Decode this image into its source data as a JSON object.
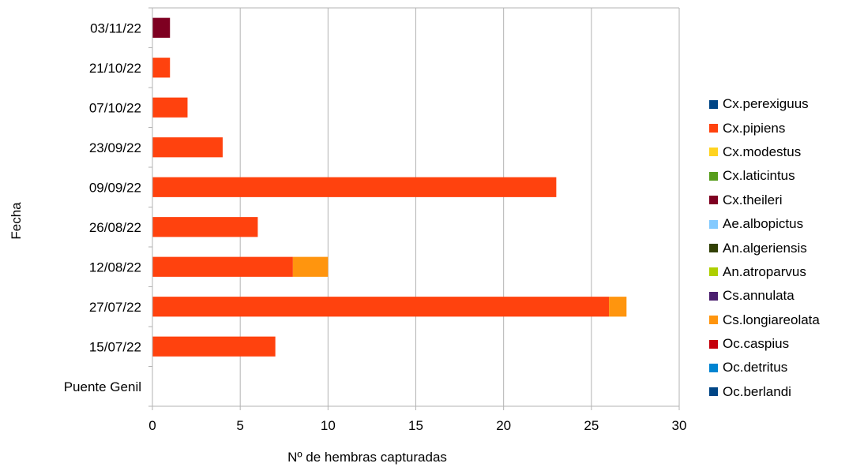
{
  "chart_data": {
    "type": "bar",
    "orientation": "horizontal",
    "stacked": true,
    "xlabel": "Nº de hembras capturadas",
    "ylabel": "Fecha",
    "xlim": [
      0,
      30
    ],
    "xticks": [
      "0",
      "5",
      "10",
      "15",
      "20",
      "25",
      "30"
    ],
    "categories": [
      "Puente Genil",
      "15/07/22",
      "27/07/22",
      "12/08/22",
      "26/08/22",
      "09/09/22",
      "23/09/22",
      "07/10/22",
      "21/10/22",
      "03/11/22"
    ],
    "series": [
      {
        "name": "Cx.perexiguus",
        "color": "#004586",
        "values": [
          0,
          0,
          0,
          0,
          0,
          0,
          0,
          0,
          0,
          0
        ]
      },
      {
        "name": "Cx.pipiens",
        "color": "#ff420e",
        "values": [
          0,
          7,
          26,
          8,
          6,
          23,
          4,
          2,
          1,
          0
        ]
      },
      {
        "name": "Cx.modestus",
        "color": "#ffd320",
        "values": [
          0,
          0,
          0,
          0,
          0,
          0,
          0,
          0,
          0,
          0
        ]
      },
      {
        "name": "Cx.laticintus",
        "color": "#579d1c",
        "values": [
          0,
          0,
          0,
          0,
          0,
          0,
          0,
          0,
          0,
          0
        ]
      },
      {
        "name": "Cx.theileri",
        "color": "#7e0021",
        "values": [
          0,
          0,
          0,
          0,
          0,
          0,
          0,
          0,
          0,
          1
        ]
      },
      {
        "name": "Ae.albopictus",
        "color": "#83caff",
        "values": [
          0,
          0,
          0,
          0,
          0,
          0,
          0,
          0,
          0,
          0
        ]
      },
      {
        "name": "An.algeriensis",
        "color": "#314004",
        "values": [
          0,
          0,
          0,
          0,
          0,
          0,
          0,
          0,
          0,
          0
        ]
      },
      {
        "name": "An.atroparvus",
        "color": "#aecf00",
        "values": [
          0,
          0,
          0,
          0,
          0,
          0,
          0,
          0,
          0,
          0
        ]
      },
      {
        "name": "Cs.annulata",
        "color": "#4b1f6f",
        "values": [
          0,
          0,
          0,
          0,
          0,
          0,
          0,
          0,
          0,
          0
        ]
      },
      {
        "name": "Cs.longiareolata",
        "color": "#ff950e",
        "values": [
          0,
          0,
          1,
          2,
          0,
          0,
          0,
          0,
          0,
          0
        ]
      },
      {
        "name": "Oc.caspius",
        "color": "#c5000b",
        "values": [
          0,
          0,
          0,
          0,
          0,
          0,
          0,
          0,
          0,
          0
        ]
      },
      {
        "name": "Oc.detritus",
        "color": "#0084d1",
        "values": [
          0,
          0,
          0,
          0,
          0,
          0,
          0,
          0,
          0,
          0
        ]
      },
      {
        "name": "Oc.berlandi",
        "color": "#004586",
        "values": [
          0,
          0,
          0,
          0,
          0,
          0,
          0,
          0,
          0,
          0
        ]
      }
    ],
    "grid": true,
    "legend_position": "right"
  }
}
